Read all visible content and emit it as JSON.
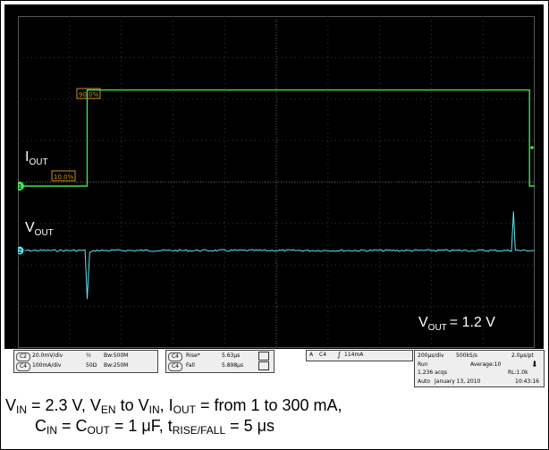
{
  "chart_data": {
    "type": "line",
    "xlabel": "",
    "ylabel": "",
    "x_time_per_div": "200μs/div",
    "grid": true,
    "series": [
      {
        "name": "I_OUT",
        "color": "#3ee64a",
        "x_us": [
          0,
          268,
          268,
          1980,
          1980,
          2000
        ],
        "level_div": [
          0,
          0,
          4.4,
          4.4,
          0,
          0
        ]
      },
      {
        "name": "V_OUT",
        "color": "#5ee4ee",
        "x_us": [
          0,
          260,
          268,
          278,
          300,
          1910,
          1918,
          1925,
          1935,
          2000
        ],
        "level_div": [
          0,
          0,
          -2.2,
          -0.1,
          0,
          0,
          1.8,
          0,
          0,
          0
        ]
      }
    ],
    "annotations": {
      "iout_label": "I",
      "iout_sub": "OUT",
      "vout_label": "V",
      "vout_sub": "OUT",
      "vout_eq": "= 1.2 V",
      "marker_90": "90.0%",
      "marker_10": "10.0%",
      "ch1_num": "1",
      "ch2_num": "2"
    }
  },
  "status": {
    "ch2_name": "C2",
    "ch2_scale": "20.0mV/div",
    "ch4_name": "C4",
    "ch4_scale": "100mA/div",
    "ch2_coup": "½",
    "ch4_coup": "50Ω",
    "ch2_bw": "Bw:500M",
    "ch4_bw": "Bw:250M",
    "meas1_label": "Rise*",
    "meas1_value": "5.63μs",
    "meas2_label": "Fall",
    "meas2_value": "5.898μs",
    "trig_a": "A",
    "trig_ch": "C4",
    "trig_level": "114mA",
    "timebase": "200μs/div",
    "samplerate": "500kS/s",
    "pt": "2.0μs/pt",
    "run": "Run",
    "average": "Average:10",
    "acqs": "1.236 acqs",
    "rl": "RL:1.0k",
    "auto": "Auto",
    "date": "January 13, 2010",
    "time": "10:43:16"
  },
  "caption": {
    "l1_a": "V",
    "l1_a_sub": "IN",
    "l1_b": " = 2.3 V, V",
    "l1_b_sub": "EN",
    "l1_c": " to V",
    "l1_c_sub": "IN",
    "l1_d": ", I",
    "l1_d_sub": "OUT",
    "l1_e": " = from 1 to 300 mA,",
    "l2_a": "C",
    "l2_a_sub": "IN",
    "l2_b": " = C",
    "l2_b_sub": "OUT",
    "l2_c": " = 1 μF, t",
    "l2_c_sub": "RISE/FALL",
    "l2_d": " = 5 μs"
  }
}
